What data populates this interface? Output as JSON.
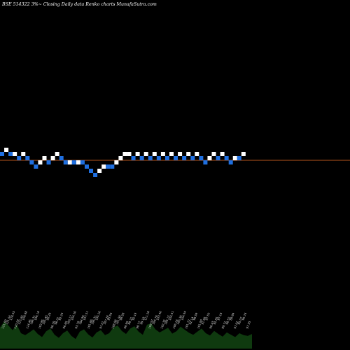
{
  "chart_data": {
    "type": "renko",
    "title": "BSE 514322  3%~  Closing Daily data  Renko  charts MunafaSutra.com",
    "colors": {
      "background": "#000000",
      "up_brick": "#ffffff",
      "down_brick": "#1f6fe0",
      "reference_line": "#b5541c",
      "title": "#ffffff",
      "volume_fill": "#0f3a0f",
      "label_text": "#dddddd"
    },
    "bricks": [
      {
        "dir": "down"
      },
      {
        "dir": "up"
      },
      {
        "dir": "down"
      },
      {
        "dir": "up"
      },
      {
        "dir": "down"
      },
      {
        "dir": "up"
      },
      {
        "dir": "down"
      },
      {
        "dir": "down"
      },
      {
        "dir": "down"
      },
      {
        "dir": "up"
      },
      {
        "dir": "up"
      },
      {
        "dir": "down"
      },
      {
        "dir": "up"
      },
      {
        "dir": "up"
      },
      {
        "dir": "down"
      },
      {
        "dir": "down"
      },
      {
        "dir": "up"
      },
      {
        "dir": "down"
      },
      {
        "dir": "up"
      },
      {
        "dir": "down"
      },
      {
        "dir": "down"
      },
      {
        "dir": "down"
      },
      {
        "dir": "down"
      },
      {
        "dir": "up"
      },
      {
        "dir": "up"
      },
      {
        "dir": "down"
      },
      {
        "dir": "down"
      },
      {
        "dir": "up"
      },
      {
        "dir": "up"
      },
      {
        "dir": "up"
      },
      {
        "dir": "up"
      },
      {
        "dir": "down"
      },
      {
        "dir": "up"
      },
      {
        "dir": "down"
      },
      {
        "dir": "up"
      },
      {
        "dir": "down"
      },
      {
        "dir": "up"
      },
      {
        "dir": "down"
      },
      {
        "dir": "up"
      },
      {
        "dir": "down"
      },
      {
        "dir": "up"
      },
      {
        "dir": "down"
      },
      {
        "dir": "up"
      },
      {
        "dir": "down"
      },
      {
        "dir": "up"
      },
      {
        "dir": "down"
      },
      {
        "dir": "up"
      },
      {
        "dir": "down"
      },
      {
        "dir": "down"
      },
      {
        "dir": "up"
      },
      {
        "dir": "up"
      },
      {
        "dir": "down"
      },
      {
        "dir": "up"
      },
      {
        "dir": "down"
      },
      {
        "dir": "down"
      },
      {
        "dir": "up"
      },
      {
        "dir": "down"
      },
      {
        "dir": "up"
      }
    ],
    "brick_levels": [
      0,
      1,
      0,
      0,
      -1,
      0,
      -1,
      -2,
      -3,
      -2,
      -1,
      -2,
      -1,
      0,
      -1,
      -2,
      -2,
      -2,
      -2,
      -2,
      -3,
      -4,
      -5,
      -4,
      -3,
      -3,
      -3,
      -2,
      -1,
      0,
      0,
      -1,
      0,
      -1,
      0,
      -1,
      0,
      -1,
      0,
      -1,
      0,
      -1,
      0,
      -1,
      0,
      -1,
      0,
      -1,
      -2,
      -1,
      0,
      -1,
      0,
      -1,
      -2,
      -1,
      -1,
      0
    ],
    "volume_labels": [
      "121.00",
      "121.64",
      "118.55",
      "110.19",
      "123.65",
      "108.88",
      "114.45",
      "106.31",
      "106.18",
      "103.95",
      "105.45",
      "96.29",
      "98.39",
      "96.01",
      "92.26",
      "96.65",
      "100.17",
      "104.36",
      "93.78",
      "104.96",
      "107.51",
      "101.66",
      "106.31",
      "105.26",
      "97.01",
      "107.26",
      "95.56",
      "108.96",
      "101.90",
      "99.58",
      "99.95",
      "89.21",
      "92.19",
      "98.77",
      "99.18",
      "111.28",
      "109.57",
      "104.76",
      "103.46",
      "102.35",
      "105.15",
      "104.91",
      "106.16",
      "106.36",
      "104.04",
      "101.72",
      "92.14",
      "98.59",
      "101.00",
      "91.60",
      "97.53",
      "98.43",
      "92.85",
      "97.18",
      "89.71",
      "98.52",
      "88.84",
      "97.02",
      "95.07",
      "90.76",
      "97.35"
    ],
    "volume_heights": [
      0.55,
      0.7,
      0.6,
      0.48,
      0.62,
      0.4,
      0.35,
      0.42,
      0.5,
      0.38,
      0.3,
      0.45,
      0.52,
      0.36,
      0.28,
      0.4,
      0.47,
      0.33,
      0.25,
      0.44,
      0.5,
      0.37,
      0.29,
      0.42,
      0.48,
      0.35,
      0.4,
      0.55,
      0.6,
      0.46,
      0.38,
      0.52,
      0.58,
      0.44,
      0.36,
      0.62,
      0.66,
      0.5,
      0.42,
      0.48,
      0.54,
      0.39,
      0.45,
      0.57,
      0.49,
      0.41,
      0.36,
      0.44,
      0.52,
      0.4,
      0.34,
      0.46,
      0.38,
      0.31,
      0.42,
      0.36,
      0.3,
      0.4,
      0.35,
      0.33,
      0.38
    ]
  }
}
